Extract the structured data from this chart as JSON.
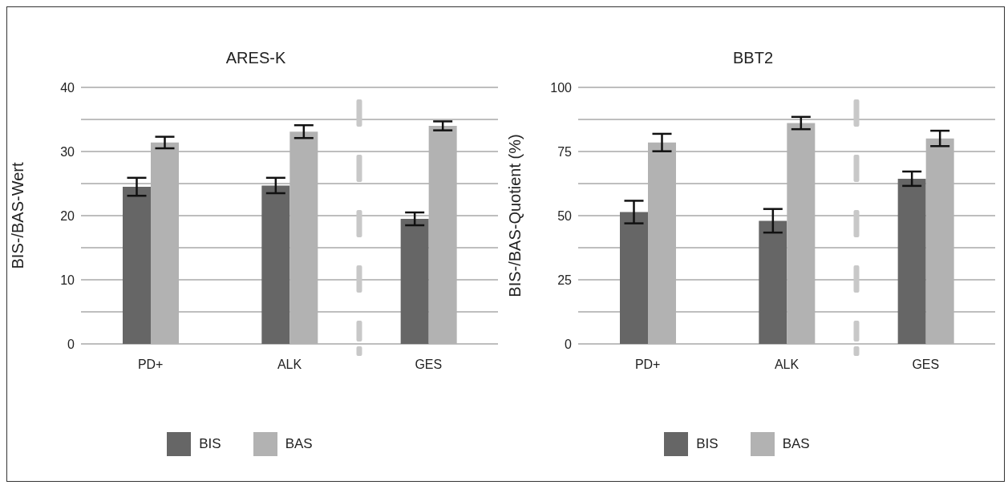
{
  "chart_data": [
    {
      "type": "bar",
      "title": "ARES-K",
      "ylabel": "BIS-/BAS-Wert",
      "categories": [
        "PD+",
        "ALK",
        "GES"
      ],
      "series": [
        {
          "name": "BIS",
          "color": "#666666",
          "values": [
            24.5,
            24.7,
            19.5
          ],
          "errors": [
            1.4,
            1.2,
            1.0
          ]
        },
        {
          "name": "BAS",
          "color": "#b2b2b2",
          "values": [
            31.4,
            33.1,
            34.0
          ],
          "errors": [
            0.9,
            1.0,
            0.7
          ]
        }
      ],
      "ylim": [
        0,
        40
      ],
      "yticks": [
        0,
        {
          "value": 5,
          "label": null
        },
        10,
        {
          "value": 15,
          "label": null
        },
        20,
        {
          "value": 25,
          "label": null
        },
        30,
        {
          "value": 35,
          "label": null
        },
        40
      ],
      "grid": "y",
      "legend": "bottom"
    },
    {
      "type": "bar",
      "title": "BBT2",
      "ylabel": "BIS-/BAS-Quotient (%)",
      "categories": [
        "PD+",
        "ALK",
        "GES"
      ],
      "series": [
        {
          "name": "BIS",
          "color": "#666666",
          "values": [
            51.4,
            48.0,
            64.4
          ],
          "errors": [
            4.4,
            4.6,
            2.8
          ]
        },
        {
          "name": "BAS",
          "color": "#b2b2b2",
          "values": [
            78.5,
            86.1,
            80.1
          ],
          "errors": [
            3.4,
            2.4,
            3.0
          ]
        }
      ],
      "ylim": [
        0,
        100
      ],
      "yticks": [
        0,
        {
          "value": 12.5,
          "label": null
        },
        25,
        {
          "value": 37.5,
          "label": null
        },
        50,
        {
          "value": 62.5,
          "label": null
        },
        75,
        {
          "value": 87.5,
          "label": null
        },
        100
      ],
      "grid": "y",
      "legend": "bottom"
    }
  ]
}
